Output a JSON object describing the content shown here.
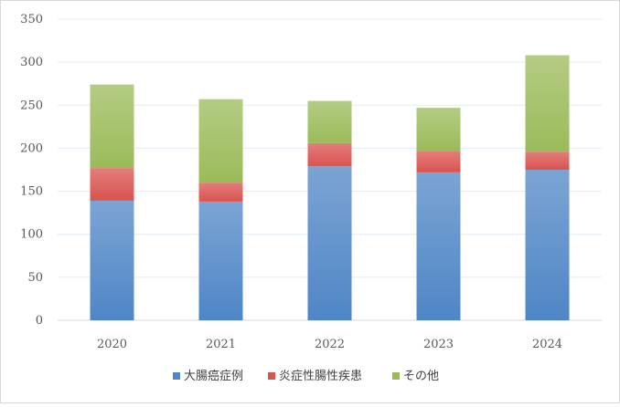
{
  "chart_data": {
    "type": "bar",
    "stacked": true,
    "categories": [
      "2020",
      "2021",
      "2022",
      "2023",
      "2024"
    ],
    "series": [
      {
        "name": "大腸癌症例",
        "color": "#4f86c6",
        "values": [
          139,
          138,
          179,
          172,
          175
        ]
      },
      {
        "name": "炎症性腸性疾患",
        "color": "#d9534f",
        "values": [
          38,
          22,
          27,
          25,
          21
        ]
      },
      {
        "name": "その他",
        "color": "#9bbb59",
        "values": [
          97,
          97,
          49,
          50,
          112
        ]
      }
    ],
    "title": "",
    "xlabel": "",
    "ylabel": "",
    "ylim": [
      0,
      350
    ],
    "yticks": [
      0,
      50,
      100,
      150,
      200,
      250,
      300,
      350
    ],
    "grid": true,
    "legend_position": "bottom"
  }
}
